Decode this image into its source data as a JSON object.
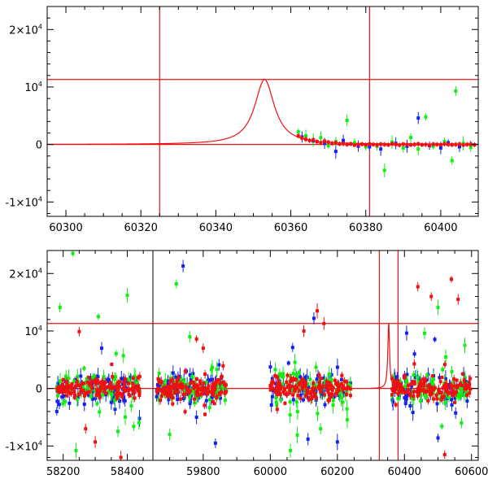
{
  "colors": {
    "red": "#ee1111",
    "green": "#11ee11",
    "blue": "#1122ee",
    "axis": "#000000"
  },
  "chart_data": [
    {
      "type": "scatter",
      "panel": "top",
      "title": "",
      "xlabel": "",
      "ylabel": "",
      "xlim": [
        60295,
        60410
      ],
      "ylim": [
        -12500,
        24000
      ],
      "x_ticks": [
        60300,
        60320,
        60340,
        60360,
        60380,
        60400
      ],
      "x_tick_labels": [
        "60300",
        "60320",
        "60340",
        "60360",
        "60380",
        "60400"
      ],
      "y_ticks": [
        -10000,
        0,
        10000,
        20000
      ],
      "y_tick_labels": [
        {
          "base": "-1×10",
          "exp": "4"
        },
        {
          "base": "0",
          "exp": ""
        },
        {
          "base": "10",
          "exp": "4"
        },
        {
          "base": "2×10",
          "exp": "4"
        }
      ],
      "reference_lines": {
        "horizontal": [
          0,
          11300
        ],
        "vertical": [
          60325,
          60381
        ]
      },
      "model_curve": {
        "peak_x": 60353,
        "peak_y": 11300,
        "width": 3.2
      },
      "series": [
        {
          "color": "red",
          "points": [
            [
              60362,
              1500
            ],
            [
              60363,
              1100
            ],
            [
              60364,
              900
            ],
            [
              60365,
              700
            ],
            [
              60366,
              800
            ],
            [
              60367,
              500
            ],
            [
              60368,
              300
            ],
            [
              60369,
              600
            ],
            [
              60370,
              400
            ],
            [
              60371,
              200
            ],
            [
              60372,
              300
            ],
            [
              60373,
              100
            ],
            [
              60374,
              150
            ],
            [
              60375,
              0
            ],
            [
              60376,
              100
            ],
            [
              60377,
              -100
            ],
            [
              60378,
              0
            ],
            [
              60379,
              50
            ],
            [
              60380,
              -50
            ],
            [
              60381,
              100
            ],
            [
              60382,
              0
            ],
            [
              60383,
              -100
            ],
            [
              60384,
              50
            ],
            [
              60385,
              0
            ],
            [
              60386,
              -50
            ],
            [
              60387,
              100
            ],
            [
              60388,
              0
            ],
            [
              60389,
              -100
            ],
            [
              60390,
              50
            ],
            [
              60391,
              0
            ],
            [
              60392,
              -50
            ],
            [
              60393,
              0
            ],
            [
              60394,
              100
            ],
            [
              60395,
              -50
            ],
            [
              60396,
              0
            ],
            [
              60397,
              -100
            ],
            [
              60398,
              50
            ],
            [
              60399,
              0
            ],
            [
              60400,
              -50
            ],
            [
              60401,
              100
            ],
            [
              60402,
              0
            ],
            [
              60403,
              -50
            ],
            [
              60404,
              0
            ],
            [
              60405,
              50
            ],
            [
              60406,
              -100
            ],
            [
              60407,
              0
            ],
            [
              60408,
              50
            ],
            [
              60409,
              -50
            ]
          ]
        },
        {
          "color": "green",
          "points": [
            [
              60362,
              2200
            ],
            [
              60364,
              1500
            ],
            [
              60366,
              800
            ],
            [
              60368,
              1200
            ],
            [
              60370,
              -200
            ],
            [
              60372,
              500
            ],
            [
              60375,
              4200
            ],
            [
              60377,
              300
            ],
            [
              60380,
              -400
            ],
            [
              60383,
              -300
            ],
            [
              60385,
              -4500
            ],
            [
              60387,
              400
            ],
            [
              60390,
              -600
            ],
            [
              60392,
              1200
            ],
            [
              60394,
              -800
            ],
            [
              60396,
              4800
            ],
            [
              60398,
              -300
            ],
            [
              60401,
              500
            ],
            [
              60403,
              -2800
            ],
            [
              60404,
              9300
            ],
            [
              60406,
              200
            ],
            [
              60408,
              -500
            ]
          ]
        },
        {
          "color": "blue",
          "points": [
            [
              60363,
              1300
            ],
            [
              60366,
              600
            ],
            [
              60369,
              200
            ],
            [
              60372,
              -1200
            ],
            [
              60374,
              700
            ],
            [
              60378,
              -300
            ],
            [
              60381,
              -400
            ],
            [
              60384,
              -800
            ],
            [
              60388,
              200
            ],
            [
              60391,
              -300
            ],
            [
              60394,
              4600
            ],
            [
              60397,
              -200
            ],
            [
              60400,
              -600
            ],
            [
              60402,
              300
            ],
            [
              60405,
              -400
            ],
            [
              60408,
              0
            ]
          ]
        }
      ]
    },
    {
      "type": "scatter",
      "panel": "bottom",
      "title": "",
      "xlabel": "",
      "ylabel": "",
      "ylim": [
        -12500,
        24000
      ],
      "x_segments": [
        {
          "xlim": [
            58150,
            58480
          ],
          "ticks": [
            58200,
            58400
          ],
          "tick_labels": [
            "58200",
            "58400"
          ]
        },
        {
          "xlim": [
            59650,
            60620
          ],
          "ticks": [
            59800,
            60000,
            60200,
            60400,
            60600
          ],
          "tick_labels": [
            "59800",
            "60000",
            "60200",
            "60400",
            "60600"
          ]
        }
      ],
      "y_ticks": [
        -10000,
        0,
        10000,
        20000
      ],
      "y_tick_labels": [
        {
          "base": "-1×10",
          "exp": "4"
        },
        {
          "base": "0",
          "exp": ""
        },
        {
          "base": "10",
          "exp": "4"
        },
        {
          "base": "2×10",
          "exp": "4"
        }
      ],
      "reference_lines": {
        "horizontal": [
          0,
          11300
        ],
        "vertical": [
          60325,
          60381
        ]
      },
      "model_curve": {
        "peak_x": 60353,
        "peak_y": 11300,
        "width": 3.2
      },
      "seasons": [
        {
          "from": 58180,
          "to": 58440,
          "spread": 2500
        },
        {
          "from": 59660,
          "to": 59870,
          "spread": 2500
        },
        {
          "from": 60000,
          "to": 60240,
          "spread": 2500
        },
        {
          "from": 60362,
          "to": 60600,
          "spread": 2500
        }
      ],
      "outliers": {
        "red": [
          [
            58250,
            9900
          ],
          [
            58270,
            -7000
          ],
          [
            58300,
            -9300
          ],
          [
            58380,
            -12000
          ],
          [
            59780,
            8600
          ],
          [
            59800,
            7000
          ],
          [
            60100,
            10000
          ],
          [
            60140,
            13500
          ],
          [
            60160,
            11300
          ],
          [
            60440,
            17700
          ],
          [
            60480,
            16000
          ],
          [
            60540,
            19000
          ],
          [
            60560,
            15500
          ],
          [
            60520,
            -11500
          ]
        ],
        "green": [
          [
            58190,
            14100
          ],
          [
            58310,
            12500
          ],
          [
            58400,
            16200
          ],
          [
            58240,
            -10800
          ],
          [
            58420,
            -6600
          ],
          [
            59720,
            18200
          ],
          [
            59760,
            9000
          ],
          [
            59700,
            -8000
          ],
          [
            60060,
            -10800
          ],
          [
            60150,
            -7000
          ],
          [
            60460,
            9600
          ],
          [
            60500,
            14100
          ],
          [
            60580,
            7500
          ],
          [
            60570,
            -6000
          ],
          [
            58230,
            23500
          ]
        ],
        "blue": [
          [
            58180,
            -4000
          ],
          [
            58320,
            7000
          ],
          [
            59740,
            21300
          ],
          [
            59780,
            -5000
          ],
          [
            60130,
            12200
          ],
          [
            60200,
            -9300
          ],
          [
            60430,
            6000
          ],
          [
            60500,
            -8600
          ]
        ]
      }
    }
  ]
}
